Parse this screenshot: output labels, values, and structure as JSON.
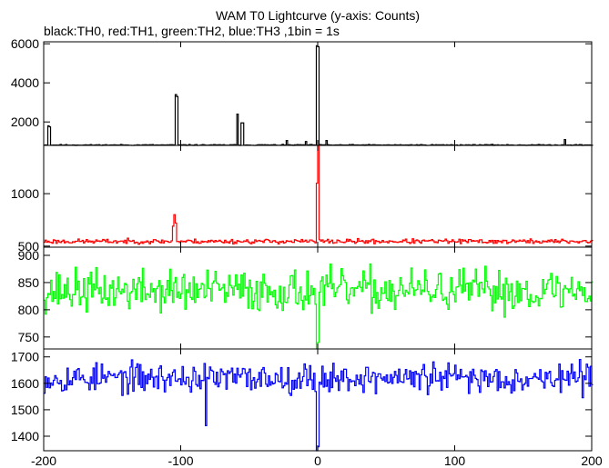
{
  "chart_data": {
    "type": "line",
    "title": "WAM T0 Lightcurve (y-axis: Counts)",
    "subtitle": "black:TH0, red:TH1, green:TH2, blue:TH3 ,1bin = 1s",
    "xlim": [
      -200,
      200
    ],
    "x_ticks": [
      -200,
      -100,
      0,
      100,
      200
    ],
    "x_tick_labels": [
      "-200",
      "-100",
      "0",
      "100",
      "200"
    ],
    "grid": false,
    "panels": [
      {
        "name": "TH0",
        "color": "#000000",
        "ylim": [
          800,
          6100
        ],
        "y_ticks": [
          2000,
          4000,
          6000
        ],
        "y_tick_labels": [
          "2000",
          "4000",
          "6000"
        ],
        "baseline": 820,
        "noise": 25,
        "seed": 11,
        "features": [
          {
            "x": -197,
            "y": 1800
          },
          {
            "x": -196,
            "y": 1750
          },
          {
            "x": -104,
            "y": 3400
          },
          {
            "x": -103,
            "y": 3300
          },
          {
            "x": -59,
            "y": 2400
          },
          {
            "x": -56,
            "y": 1950
          },
          {
            "x": -55,
            "y": 1950
          },
          {
            "x": -23,
            "y": 1050
          },
          {
            "x": -9,
            "y": 1000
          },
          {
            "x": -1,
            "y": 5900
          },
          {
            "x": 0,
            "y": 5850
          },
          {
            "x": 6,
            "y": 1050
          },
          {
            "x": 180,
            "y": 1100
          }
        ]
      },
      {
        "name": "TH1",
        "color": "#ff0000",
        "ylim": [
          490,
          1460
        ],
        "y_ticks": [
          500,
          1000
        ],
        "y_tick_labels": [
          "500",
          "1000"
        ],
        "baseline": 545,
        "noise": 22,
        "seed": 23,
        "features": [
          {
            "x": -105,
            "y": 800
          },
          {
            "x": -104,
            "y": 720
          },
          {
            "x": -106,
            "y": 690
          },
          {
            "x": 0,
            "y": 1460
          },
          {
            "x": -1,
            "y": 1100
          }
        ]
      },
      {
        "name": "TH2",
        "color": "#00ff00",
        "ylim": [
          728,
          915
        ],
        "y_ticks": [
          750,
          800,
          850,
          900
        ],
        "y_tick_labels": [
          "750",
          "800",
          "850",
          "900"
        ],
        "baseline": 835,
        "noise": 38,
        "seed": 37,
        "features": [
          {
            "x": -1,
            "y": 728
          },
          {
            "x": 0,
            "y": 740
          }
        ]
      },
      {
        "name": "TH3",
        "color": "#0000ff",
        "ylim": [
          1345,
          1730
        ],
        "y_ticks": [
          1400,
          1500,
          1600,
          1700
        ],
        "y_tick_labels": [
          "1400",
          "1500",
          "1600",
          "1700"
        ],
        "baseline": 1620,
        "noise": 55,
        "seed": 53,
        "features": [
          {
            "x": -82,
            "y": 1440
          },
          {
            "x": -1,
            "y": 1345
          },
          {
            "x": 0,
            "y": 1360
          }
        ]
      }
    ]
  }
}
